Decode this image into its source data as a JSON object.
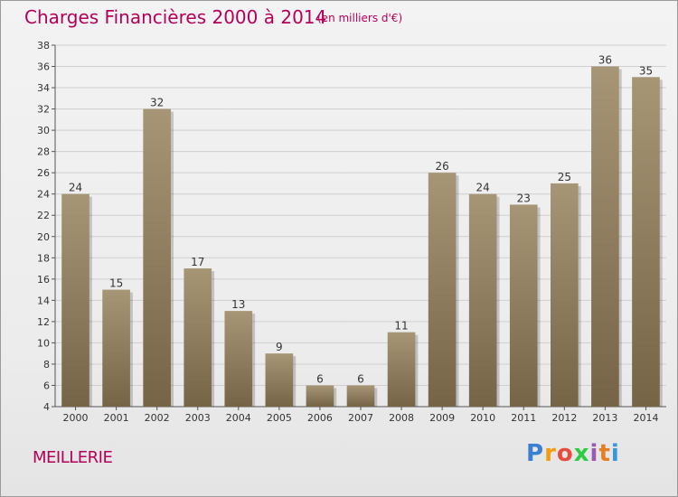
{
  "header": {
    "title": "Charges Financières 2000 à 2014",
    "subtitle": "(en milliers d'€)"
  },
  "footer": {
    "commune": "MEILLERIE",
    "logo_text": "Proxiti"
  },
  "colors": {
    "title": "#b5005a",
    "bar_top": "#a69676",
    "bar_bottom": "#756446",
    "logo": [
      "#3a7fd0",
      "#f39c12",
      "#e74c3c",
      "#2ecc40",
      "#9b59b6",
      "#e67e22",
      "#3498db"
    ]
  },
  "chart_data": {
    "type": "bar",
    "title": "Charges Financières 2000 à 2014",
    "subtitle": "(en milliers d'€)",
    "categories": [
      "2000",
      "2001",
      "2002",
      "2003",
      "2004",
      "2005",
      "2006",
      "2007",
      "2008",
      "2009",
      "2010",
      "2011",
      "2012",
      "2013",
      "2014"
    ],
    "values": [
      24,
      15,
      32,
      17,
      13,
      9,
      6,
      6,
      11,
      26,
      24,
      23,
      25,
      36,
      35
    ],
    "ylim": [
      4,
      38
    ],
    "yticks": [
      4,
      6,
      8,
      10,
      12,
      14,
      16,
      18,
      20,
      22,
      24,
      26,
      28,
      30,
      32,
      34,
      36,
      38
    ],
    "grid": true,
    "legend": "none"
  }
}
